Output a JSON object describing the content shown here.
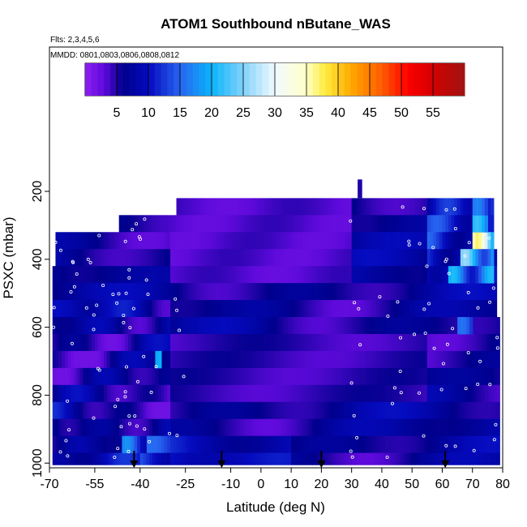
{
  "chart_data": {
    "type": "heatmap",
    "title": "ATOM1 Southbound nButane_WAS",
    "subtitle_flights": "Flts: 2,3,4,5,6",
    "subtitle_dates": "MMDD: 0801,0803,0806,0808,0812",
    "xlabel": "Latitude (deg N)",
    "ylabel": "PSXC (mbar)",
    "xlim": [
      -70,
      80
    ],
    "ylim": [
      1000,
      100
    ],
    "x_ticks": [
      -70,
      -55,
      -40,
      -25,
      -10,
      0,
      10,
      20,
      30,
      40,
      50,
      60,
      70,
      80
    ],
    "y_ticks": [
      200,
      400,
      600,
      800,
      1000
    ],
    "colorbar": {
      "range": [
        0,
        60
      ],
      "ticks": [
        5,
        10,
        15,
        20,
        25,
        30,
        35,
        40,
        45,
        50,
        55
      ]
    },
    "arrows_latitude": [
      -42,
      -13,
      20,
      61
    ],
    "layers": [
      {
        "p_top": 220,
        "p_bot": 270,
        "lat_min": -28,
        "lat_max": 77
      },
      {
        "p_top": 270,
        "p_bot": 320,
        "lat_min": -47,
        "lat_max": 77
      },
      {
        "p_top": 320,
        "p_bot": 370,
        "lat_min": -68,
        "lat_max": 77
      },
      {
        "p_top": 370,
        "p_bot": 420,
        "lat_min": -68,
        "lat_max": 78
      },
      {
        "p_top": 420,
        "p_bot": 470,
        "lat_min": -69,
        "lat_max": 78
      },
      {
        "p_top": 470,
        "p_bot": 520,
        "lat_min": -69,
        "lat_max": 78
      },
      {
        "p_top": 520,
        "p_bot": 570,
        "lat_min": -69,
        "lat_max": 78
      },
      {
        "p_top": 570,
        "p_bot": 620,
        "lat_min": -69,
        "lat_max": 79
      },
      {
        "p_top": 620,
        "p_bot": 670,
        "lat_min": -69,
        "lat_max": 79
      },
      {
        "p_top": 670,
        "p_bot": 720,
        "lat_min": -69,
        "lat_max": 79
      },
      {
        "p_top": 720,
        "p_bot": 770,
        "lat_min": -69,
        "lat_max": 79
      },
      {
        "p_top": 770,
        "p_bot": 820,
        "lat_min": -69,
        "lat_max": 79
      },
      {
        "p_top": 820,
        "p_bot": 870,
        "lat_min": -69,
        "lat_max": 79
      },
      {
        "p_top": 870,
        "p_bot": 920,
        "lat_min": -69,
        "lat_max": 79
      },
      {
        "p_top": 920,
        "p_bot": 970,
        "lat_min": -69,
        "lat_max": 79
      },
      {
        "p_top": 970,
        "p_bot": 1005,
        "lat_min": -69,
        "lat_max": 79
      }
    ],
    "spike": {
      "lat_min": 32,
      "lat_max": 33.5,
      "p_top": 165,
      "p_bot": 220
    },
    "hotspots": [
      {
        "lat_min": 70,
        "lat_max": 77,
        "p_top": 320,
        "p_bot": 370,
        "value": 37
      },
      {
        "lat_min": 66,
        "lat_max": 77,
        "p_top": 370,
        "p_bot": 420,
        "value": 26
      },
      {
        "lat_min": 62,
        "lat_max": 77,
        "p_top": 420,
        "p_bot": 470,
        "value": 21
      },
      {
        "lat_min": 70,
        "lat_max": 75,
        "p_top": 270,
        "p_bot": 320,
        "value": 22
      },
      {
        "lat_min": -35,
        "lat_max": -33,
        "p_top": 670,
        "p_bot": 720,
        "value": 20
      },
      {
        "lat_min": -46,
        "lat_max": -38,
        "p_top": 920,
        "p_bot": 970,
        "value": 18
      },
      {
        "lat_min": 65,
        "lat_max": 70,
        "p_top": 570,
        "p_bot": 620,
        "value": 16
      },
      {
        "lat_min": 70,
        "lat_max": 75,
        "p_top": 220,
        "p_bot": 270,
        "value": 17
      }
    ]
  }
}
